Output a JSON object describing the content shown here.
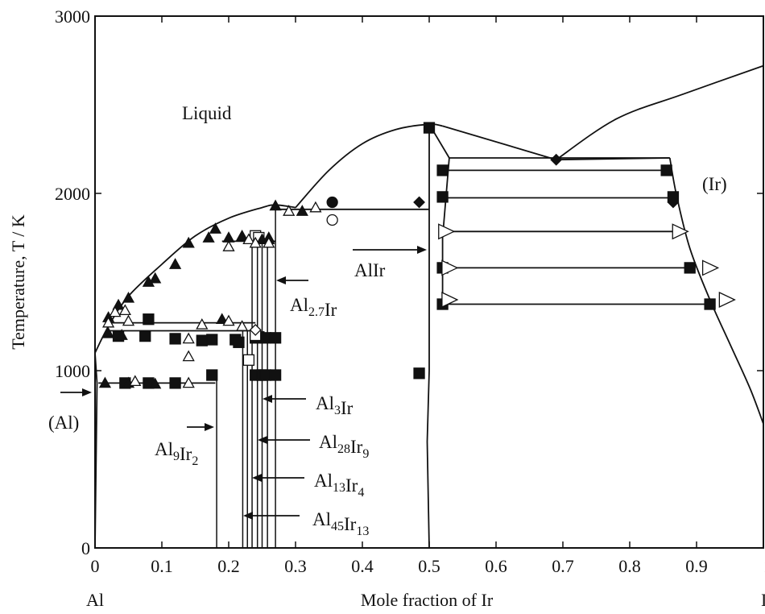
{
  "chart_data": {
    "type": "scatter",
    "title": "",
    "xlabel": "Mole fraction of Ir",
    "ylabel": "Temperature, T / K",
    "xlim": [
      0,
      1
    ],
    "ylim": [
      0,
      3000
    ],
    "x_ticks": [
      "0",
      "0.1",
      "0.2",
      "0.3",
      "0.4",
      "0.5",
      "0.6",
      "0.7",
      "0.8",
      "0.9",
      "1"
    ],
    "y_ticks": [
      "0",
      "1000",
      "2000",
      "3000"
    ],
    "y_tick_values": [
      0,
      1000,
      2000,
      3000
    ],
    "x_end_labels": {
      "left": "Al",
      "right": "Ir"
    },
    "grid": false,
    "phase_labels": {
      "liquid": "Liquid",
      "ir_phase": "(Ir)",
      "al_phase": "(Al)",
      "allr": "AlIr"
    },
    "compound_labels": [
      {
        "name": "Al9Ir2",
        "base": [
          [
            "Al",
            "9"
          ],
          [
            "Ir",
            "2"
          ]
        ],
        "x": 0.182
      },
      {
        "name": "Al45Ir13",
        "base": [
          [
            "Al",
            "45"
          ],
          [
            "Ir",
            "13"
          ]
        ],
        "x": 0.224
      },
      {
        "name": "Al13Ir4",
        "base": [
          [
            "Al",
            "13"
          ],
          [
            "Ir",
            "4"
          ]
        ],
        "x": 0.235
      },
      {
        "name": "Al28Ir9",
        "base": [
          [
            "Al",
            "28"
          ],
          [
            "Ir",
            "9"
          ]
        ],
        "x": 0.243
      },
      {
        "name": "Al3Ir",
        "base": [
          [
            "Al",
            "3"
          ],
          [
            "Ir",
            ""
          ]
        ],
        "x": 0.25
      },
      {
        "name": "Al2.7Ir",
        "base": [
          [
            "Al",
            "2.7"
          ],
          [
            "Ir",
            ""
          ]
        ],
        "x": 0.27
      }
    ],
    "liquidus_left": [
      [
        0,
        1100
      ],
      [
        0.02,
        1250
      ],
      [
        0.05,
        1420
      ],
      [
        0.1,
        1600
      ],
      [
        0.15,
        1760
      ],
      [
        0.2,
        1860
      ],
      [
        0.25,
        1920
      ],
      [
        0.27,
        1935
      ],
      [
        0.3,
        1920
      ]
    ],
    "liquidus_mid": [
      [
        0.3,
        1920
      ],
      [
        0.35,
        2130
      ],
      [
        0.4,
        2280
      ],
      [
        0.45,
        2360
      ],
      [
        0.5,
        2390
      ],
      [
        0.52,
        2380
      ]
    ],
    "liquidus_right": [
      [
        0.52,
        2380
      ],
      [
        0.6,
        2300
      ],
      [
        0.69,
        2190
      ],
      [
        0.78,
        2420
      ],
      [
        0.88,
        2560
      ],
      [
        1,
        2720
      ]
    ],
    "solvus_ir": [
      [
        0.86,
        2200
      ],
      [
        0.87,
        1990
      ],
      [
        0.89,
        1690
      ],
      [
        0.92,
        1400
      ],
      [
        0.95,
        1150
      ],
      [
        0.98,
        900
      ],
      [
        1,
        700
      ]
    ],
    "allr_left_boundary": [
      [
        0.5,
        2390
      ],
      [
        0.5,
        2100
      ],
      [
        0.5,
        1400
      ],
      [
        0.495,
        1000
      ],
      [
        0.5,
        0
      ]
    ],
    "allr_right_boundary": [
      [
        0.5,
        2390
      ],
      [
        0.53,
        2200
      ],
      [
        0.52,
        1600
      ],
      [
        0.52,
        1350
      ]
    ],
    "filled_squares": [
      [
        0.035,
        1195
      ],
      [
        0.075,
        1195
      ],
      [
        0.12,
        1180
      ],
      [
        0.16,
        1170
      ],
      [
        0.21,
        1175
      ],
      [
        0.175,
        1175
      ],
      [
        0.215,
        1160
      ],
      [
        0.24,
        1185
      ],
      [
        0.245,
        1190
      ],
      [
        0.255,
        1185
      ],
      [
        0.27,
        1185
      ],
      [
        0.045,
        930
      ],
      [
        0.08,
        930
      ],
      [
        0.12,
        930
      ],
      [
        0.175,
        975
      ],
      [
        0.24,
        975
      ],
      [
        0.25,
        975
      ],
      [
        0.255,
        975
      ],
      [
        0.27,
        975
      ],
      [
        0.485,
        985
      ],
      [
        0.5,
        2370
      ],
      [
        0.52,
        2130
      ],
      [
        0.855,
        2130
      ],
      [
        0.52,
        1980
      ],
      [
        0.865,
        1980
      ],
      [
        0.52,
        1580
      ],
      [
        0.89,
        1580
      ],
      [
        0.52,
        1375
      ],
      [
        0.92,
        1375
      ],
      [
        0.08,
        1290
      ]
    ],
    "filled_triangles": [
      [
        0.02,
        1300
      ],
      [
        0.035,
        1370
      ],
      [
        0.05,
        1410
      ],
      [
        0.08,
        1500
      ],
      [
        0.09,
        1520
      ],
      [
        0.12,
        1600
      ],
      [
        0.14,
        1720
      ],
      [
        0.17,
        1750
      ],
      [
        0.18,
        1800
      ],
      [
        0.2,
        1750
      ],
      [
        0.22,
        1760
      ],
      [
        0.25,
        1740
      ],
      [
        0.26,
        1750
      ],
      [
        0.27,
        1930
      ],
      [
        0.31,
        1900
      ],
      [
        0.19,
        1290
      ],
      [
        0.26,
        1740
      ],
      [
        0.02,
        1210
      ],
      [
        0.04,
        1200
      ],
      [
        0.015,
        930
      ],
      [
        0.05,
        930
      ],
      [
        0.09,
        925
      ]
    ],
    "open_triangles": [
      [
        0.02,
        1270
      ],
      [
        0.05,
        1280
      ],
      [
        0.14,
        1080
      ],
      [
        0.14,
        1180
      ],
      [
        0.2,
        1700
      ],
      [
        0.23,
        1740
      ],
      [
        0.24,
        1720
      ],
      [
        0.26,
        1720
      ],
      [
        0.29,
        1900
      ],
      [
        0.33,
        1920
      ],
      [
        0.16,
        1260
      ],
      [
        0.2,
        1280
      ],
      [
        0.22,
        1250
      ],
      [
        0.14,
        930
      ],
      [
        0.06,
        940
      ],
      [
        0.03,
        1330
      ],
      [
        0.045,
        1340
      ]
    ],
    "open_squares": [
      [
        0.23,
        1060
      ],
      [
        0.24,
        1200
      ],
      [
        0.24,
        1760
      ],
      [
        0.245,
        1750
      ]
    ],
    "filled_diamonds": [
      [
        0.69,
        2190
      ],
      [
        0.485,
        1950
      ],
      [
        0.865,
        1950
      ]
    ],
    "open_diamonds": [
      [
        0.24,
        1230
      ]
    ],
    "filled_circles": [
      [
        0.355,
        1950
      ]
    ],
    "open_circles": [
      [
        0.355,
        1850
      ]
    ],
    "tie_lines": [
      {
        "x1": 0.52,
        "x2": 0.855,
        "y": 2130,
        "left": "filled-square",
        "right": "filled-square"
      },
      {
        "x1": 0.52,
        "x2": 0.865,
        "y": 1975,
        "left": "filled-square",
        "right": "filled-diamond"
      },
      {
        "x1": 0.52,
        "x2": 0.875,
        "y": 1785,
        "left": "open-triangle",
        "right": "open-triangle"
      },
      {
        "x1": 0.52,
        "x2": 0.89,
        "y": 1580,
        "left": "filled-square",
        "right": "filled-square"
      },
      {
        "x1": 0.52,
        "x2": 0.92,
        "y": 1375,
        "left": "filled-square",
        "right": "filled-square"
      }
    ]
  }
}
